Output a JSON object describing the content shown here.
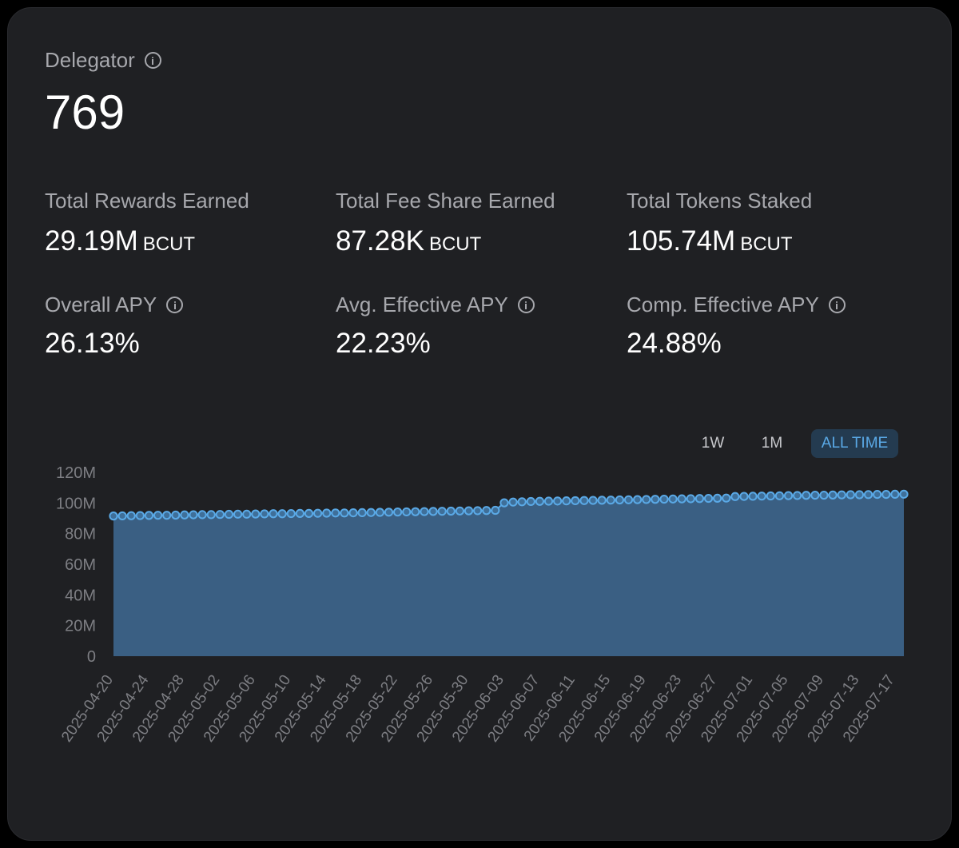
{
  "header": {
    "title": "Delegator",
    "value": "769"
  },
  "stats": [
    {
      "label": "Total Rewards Earned",
      "value": "29.19M",
      "unit": "BCUT"
    },
    {
      "label": "Total Fee Share Earned",
      "value": "87.28K",
      "unit": "BCUT"
    },
    {
      "label": "Total Tokens Staked",
      "value": "105.74M",
      "unit": "BCUT"
    }
  ],
  "apys": [
    {
      "label": "Overall APY",
      "value": "26.13%"
    },
    {
      "label": "Avg. Effective APY",
      "value": "22.23%"
    },
    {
      "label": "Comp. Effective APY",
      "value": "24.88%"
    }
  ],
  "range": {
    "options": [
      "1W",
      "1M",
      "ALL TIME"
    ],
    "active": "ALL TIME"
  },
  "colors": {
    "accent": "#5aa9e6",
    "area": "#3a5f83",
    "background": "#1f2023"
  },
  "chart_data": {
    "type": "area",
    "x_start": "2025-04-20",
    "x_end": "2025-07-18",
    "ylim": [
      0,
      120000000
    ],
    "y_ticks": [
      "0",
      "20M",
      "40M",
      "60M",
      "80M",
      "100M",
      "120M"
    ],
    "x_tick_labels": [
      "2025-04-20",
      "2025-04-24",
      "2025-04-28",
      "2025-05-02",
      "2025-05-06",
      "2025-05-10",
      "2025-05-14",
      "2025-05-18",
      "2025-05-22",
      "2025-05-26",
      "2025-05-30",
      "2025-06-03",
      "2025-06-07",
      "2025-06-11",
      "2025-06-15",
      "2025-06-19",
      "2025-06-23",
      "2025-06-27",
      "2025-07-01",
      "2025-07-05",
      "2025-07-09",
      "2025-07-13",
      "2025-07-17"
    ],
    "series": [
      {
        "values": [
          91.5,
          91.6,
          91.7,
          91.8,
          91.9,
          92.0,
          92.0,
          92.1,
          92.2,
          92.3,
          92.4,
          92.4,
          92.5,
          92.6,
          92.7,
          92.7,
          92.8,
          92.9,
          93.0,
          93.0,
          93.1,
          93.2,
          93.2,
          93.3,
          93.4,
          93.5,
          93.5,
          93.6,
          93.7,
          93.8,
          93.9,
          94.0,
          94.1,
          94.2,
          94.3,
          94.4,
          94.5,
          94.6,
          94.7,
          94.8,
          94.9,
          95.0,
          95.1,
          95.2,
          100.1,
          100.6,
          100.8,
          101.0,
          101.1,
          101.2,
          101.3,
          101.4,
          101.5,
          101.6,
          101.7,
          101.8,
          101.9,
          102.0,
          102.1,
          102.2,
          102.3,
          102.4,
          102.5,
          102.6,
          102.7,
          102.8,
          102.9,
          103.0,
          103.1,
          103.2,
          104.2,
          104.3,
          104.4,
          104.5,
          104.6,
          104.7,
          104.8,
          104.9,
          105.0,
          105.1,
          105.1,
          105.2,
          105.3,
          105.4,
          105.4,
          105.5,
          105.6,
          105.6,
          105.7,
          105.74
        ]
      }
    ]
  }
}
